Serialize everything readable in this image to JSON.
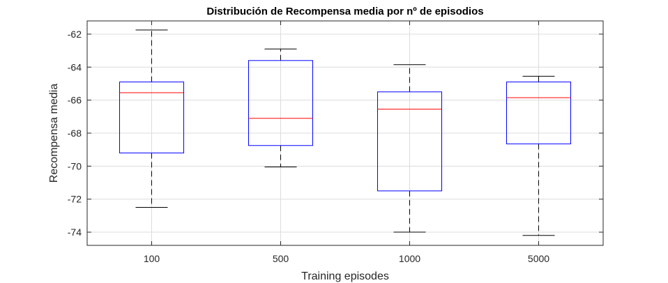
{
  "chart_data": {
    "type": "boxplot",
    "title": "Distribución de Recompensa media por nº de episodios",
    "xlabel": "Training episodes",
    "ylabel": "Recompensa media",
    "categories": [
      "100",
      "500",
      "1000",
      "5000"
    ],
    "boxes": [
      {
        "category": "100",
        "whisker_low": -72.5,
        "q1": -69.2,
        "median": -65.55,
        "q3": -64.9,
        "whisker_high": -61.75
      },
      {
        "category": "500",
        "whisker_low": -70.05,
        "q1": -68.75,
        "median": -67.1,
        "q3": -63.6,
        "whisker_high": -62.9
      },
      {
        "category": "1000",
        "whisker_low": -74.0,
        "q1": -71.5,
        "median": -66.55,
        "q3": -65.5,
        "whisker_high": -63.85
      },
      {
        "category": "5000",
        "whisker_low": -74.2,
        "q1": -68.65,
        "median": -65.85,
        "q3": -64.9,
        "whisker_high": -64.55
      }
    ],
    "ylim": [
      -74.8,
      -61.2
    ],
    "yticks": [
      -74,
      -72,
      -70,
      -68,
      -66,
      -64,
      -62
    ],
    "grid": true,
    "colors": {
      "box": "#0000ff",
      "median": "#ff0000",
      "whisker": "#000000",
      "grid": "#dcdcdc",
      "axes": "#262626"
    }
  }
}
